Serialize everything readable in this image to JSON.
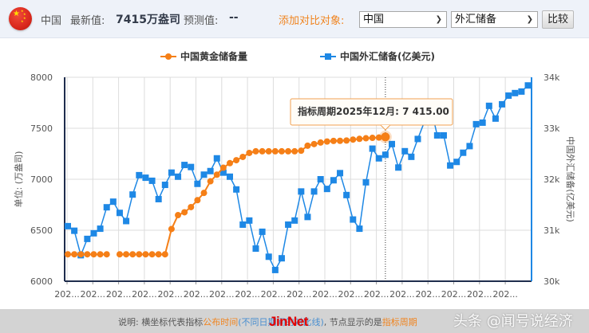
{
  "header": {
    "flag_icon": "china-flag-icon",
    "country": "中国",
    "latest_label": "最新值:",
    "latest_value": "7415万盎司",
    "forecast_label": "预测值:",
    "forecast_value": "--",
    "compare_label": "添加对比对象:",
    "compare_country": "中国",
    "compare_indicator": "外汇储备",
    "compare_button": "比较"
  },
  "legend": {
    "gold": "中国黄金储备量",
    "fx": "中国外汇储备(亿美元)"
  },
  "tooltip": {
    "text": "指标周期2025年12月: 7 415.00"
  },
  "footer": {
    "note_prefix": "说明: 横坐标代表指标",
    "note_orange1": "公布时间",
    "note_blue": "(不同日期间的对比线)",
    "note_mid": ", 节点显示的是",
    "note_orange2": "指标周期",
    "watermark_jin": "JinNet",
    "watermark_toutiao": "头条 @闻号说经济"
  },
  "colors": {
    "gold": "#f57f17",
    "fx": "#1e88e5",
    "left_axis": "#1f2d4d",
    "right_axis": "#1e88e5",
    "accent_orange": "#f0841f"
  },
  "chart_data": {
    "type": "line",
    "title": "",
    "xlabel": "",
    "x_tick_labels": [
      "202...",
      "202...",
      "202...",
      "202...",
      "202...",
      "202...",
      "202...",
      "202...",
      "202...",
      "202...",
      "202...",
      "202...",
      "202...",
      "202...",
      "202...",
      "202...",
      "202...",
      "202..."
    ],
    "left_axis": {
      "label": "单位: (万盎司)",
      "ticks": [
        6000,
        6500,
        7000,
        7500,
        8000
      ],
      "ylim": [
        6000,
        8000
      ]
    },
    "right_axis": {
      "label": "中国外汇储备(亿美元)",
      "ticks": [
        "30k",
        "31k",
        "32k",
        "33k",
        "34k"
      ],
      "ylim": [
        30000,
        34000
      ]
    },
    "grid": true,
    "legend_position": "top",
    "series": [
      {
        "name": "中国黄金储备量",
        "axis": "left",
        "marker": "circle",
        "values": [
          6264,
          6264,
          6264,
          6264,
          6264,
          6264,
          6264,
          null,
          6264,
          6264,
          6264,
          6264,
          6264,
          6264,
          6264,
          6264,
          6512,
          6648,
          6676,
          6727,
          6795,
          6866,
          6980,
          7045,
          7113,
          7158,
          7187,
          7219,
          7258,
          7274,
          7274,
          7274,
          7274,
          7274,
          7274,
          7274,
          7280,
          7329,
          7345,
          7360,
          7370,
          7376,
          7377,
          7380,
          7389,
          7396,
          7402,
          7406,
          7409,
          7415
        ]
      },
      {
        "name": "中国外汇储备(亿美元)",
        "axis": "right",
        "marker": "square",
        "values": [
          31080,
          30990,
          30510,
          30830,
          30940,
          31030,
          31450,
          31560,
          31340,
          31180,
          31700,
          32080,
          32030,
          31970,
          31610,
          31890,
          32130,
          32050,
          32280,
          32240,
          31910,
          32090,
          32160,
          32410,
          32130,
          32050,
          31800,
          31110,
          31190,
          30640,
          30970,
          30480,
          30220,
          30450,
          31110,
          31190,
          31760,
          31260,
          31760,
          32000,
          31810,
          31980,
          32120,
          31690,
          31210,
          31030,
          31940,
          32600,
          32410,
          32480,
          32690,
          32230,
          32550,
          32440,
          32790,
          33120,
          33420,
          32860,
          32860,
          32270,
          32340,
          32520,
          32650,
          33080,
          33110,
          33440,
          33190,
          33470,
          33640,
          33690,
          33720,
          33840
        ]
      }
    ],
    "highlight": {
      "series": "中国黄金储备量",
      "period": "2025年12月",
      "value": 7415.0
    }
  }
}
